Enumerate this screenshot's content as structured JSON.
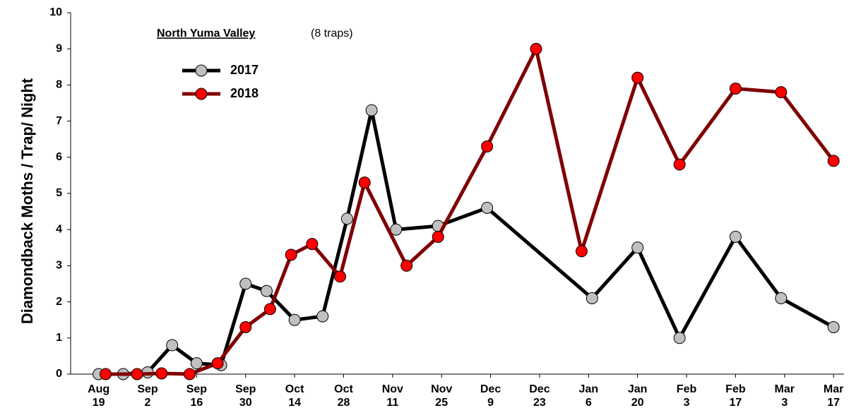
{
  "chart_data": {
    "type": "line",
    "annotation": {
      "title": "North Yuma Valley",
      "subtitle": "(8 traps)"
    },
    "ylabel": "Diamondback Moths / Trap/ Night",
    "xlim": [
      -8,
      213
    ],
    "ylim": [
      0,
      10
    ],
    "yticks": [
      0,
      1,
      2,
      3,
      4,
      5,
      6,
      7,
      8,
      9,
      10
    ],
    "xticks": [
      {
        "value": 0,
        "label": "Aug 19"
      },
      {
        "value": 14,
        "label": "Sep 2"
      },
      {
        "value": 28,
        "label": "Sep 16"
      },
      {
        "value": 42,
        "label": "Sep 30"
      },
      {
        "value": 56,
        "label": "Oct 14"
      },
      {
        "value": 70,
        "label": "Oct 28"
      },
      {
        "value": 84,
        "label": "Nov 11"
      },
      {
        "value": 98,
        "label": "Nov 25"
      },
      {
        "value": 112,
        "label": "Dec 9"
      },
      {
        "value": 126,
        "label": "Dec 23"
      },
      {
        "value": 140,
        "label": "Jan 6"
      },
      {
        "value": 154,
        "label": "Jan 20"
      },
      {
        "value": 168,
        "label": "Feb 3"
      },
      {
        "value": 182,
        "label": "Feb 17"
      },
      {
        "value": 196,
        "label": "Mar 3"
      },
      {
        "value": 210,
        "label": "Mar 17"
      }
    ],
    "legend": "upper left",
    "series": [
      {
        "name": "2017",
        "color": "#000000",
        "marker_color": "#c0c0c0",
        "x": [
          0,
          7,
          14,
          21,
          28,
          35,
          42,
          48,
          56,
          64,
          71,
          78,
          85,
          97,
          111,
          141,
          154,
          166,
          182,
          195,
          210
        ],
        "values": [
          0,
          0,
          0.05,
          0.8,
          0.3,
          0.25,
          2.5,
          2.3,
          1.5,
          1.6,
          4.3,
          7.3,
          4.0,
          4.1,
          4.6,
          2.1,
          3.5,
          1.0,
          3.8,
          2.1,
          1.3
        ]
      },
      {
        "name": "2018",
        "color": "#7f0000",
        "marker_color": "#ff0000",
        "x": [
          2,
          11,
          18,
          26,
          34,
          42,
          49,
          55,
          61,
          69,
          76,
          88,
          97,
          111,
          125,
          138,
          154,
          166,
          182,
          195,
          210
        ],
        "values": [
          0,
          0,
          0.02,
          0,
          0.3,
          1.3,
          1.8,
          3.3,
          3.6,
          2.7,
          5.3,
          3.0,
          3.8,
          6.3,
          9.0,
          3.4,
          8.2,
          5.8,
          7.9,
          7.8,
          5.9
        ]
      }
    ]
  }
}
